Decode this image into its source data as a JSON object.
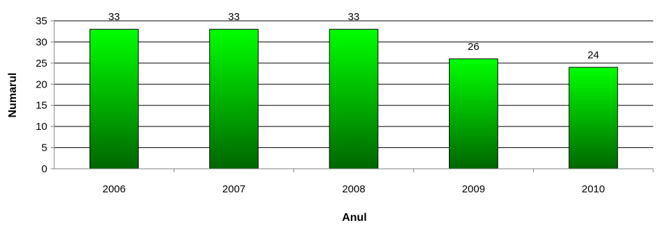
{
  "chart_data": {
    "type": "bar",
    "title": "",
    "xlabel": "Anul",
    "ylabel": "Numarul",
    "categories": [
      "2006",
      "2007",
      "2008",
      "2009",
      "2010"
    ],
    "values": [
      33,
      33,
      33,
      26,
      24
    ],
    "ylim": [
      0,
      35
    ],
    "yticks": [
      "0",
      "5",
      "10",
      "15",
      "20",
      "25",
      "30",
      "35"
    ],
    "grid": true,
    "legend": "none",
    "colors": {
      "bar_top": "#00ff00",
      "bar_bottom": "#006600",
      "bar_stroke": "#000000",
      "grid": "#000000",
      "axis": "#808080"
    }
  }
}
